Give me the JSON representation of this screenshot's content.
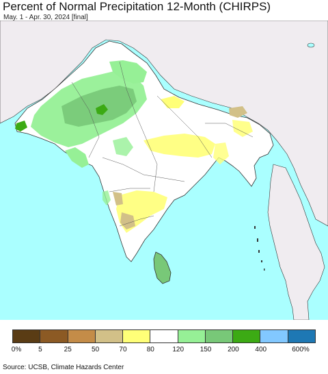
{
  "title": "Percent of Normal Precipitation 12-Month (CHIRPS)",
  "subtitle": "May. 1 - Apr. 30, 2024 [final]",
  "legend": {
    "colors": [
      "#5a3c14",
      "#8c5a24",
      "#c48c48",
      "#d2c088",
      "#ffff78",
      "#ffffff",
      "#96f096",
      "#78c878",
      "#3caa14",
      "#82c8ff",
      "#1e78b4"
    ],
    "labels": [
      "0%",
      "5",
      "25",
      "50",
      "70",
      "80",
      "120",
      "150",
      "200",
      "400",
      "600%"
    ]
  },
  "source": "Source: UCSB, Climate Hazards Center",
  "colors": {
    "ocean": "#aaffff",
    "land_outside": "#f0ecf0",
    "land_normal": "#ffffff",
    "border": "#333333"
  }
}
